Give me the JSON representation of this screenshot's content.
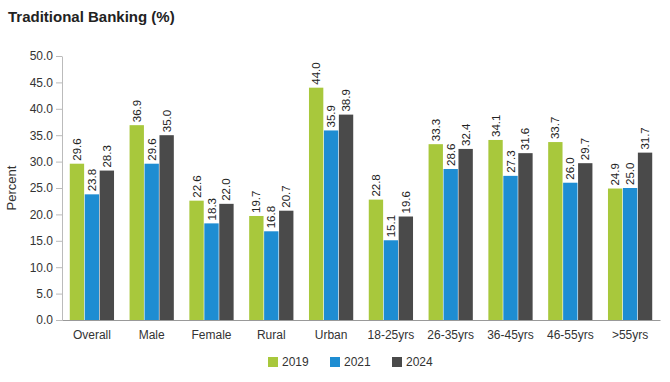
{
  "chart_data": {
    "type": "bar",
    "title": "Traditional Banking (%)",
    "y_label": "Percent",
    "categories": [
      "Overall",
      "Male",
      "Female",
      "Rural",
      "Urban",
      "18-25yrs",
      "26-35yrs",
      "36-45yrs",
      "46-55yrs",
      ">55yrs"
    ],
    "series": [
      {
        "name": "2019",
        "color": "#a8c83c",
        "values": [
          29.6,
          36.9,
          22.6,
          19.7,
          44.0,
          22.8,
          33.3,
          34.1,
          33.7,
          24.9
        ],
        "value_labels": [
          "29.6",
          "36.9",
          "22.6",
          "19.7",
          "44.0",
          "22.8",
          "33.3",
          "34.1",
          "33.7",
          "24.9"
        ]
      },
      {
        "name": "2021",
        "color": "#1e8dd2",
        "values": [
          23.8,
          29.6,
          18.3,
          16.8,
          35.9,
          15.1,
          28.6,
          27.3,
          26.0,
          25.0
        ],
        "value_labels": [
          "23.8",
          "29.6",
          "18.3",
          "16.8",
          "35.9",
          "15.1",
          "28.6",
          "27.3",
          "26.0",
          "25.0"
        ]
      },
      {
        "name": "2024",
        "color": "#4a4a4a",
        "values": [
          28.3,
          35.0,
          22.0,
          20.7,
          38.9,
          19.6,
          32.4,
          31.6,
          29.7,
          31.7
        ],
        "value_labels": [
          "28.3",
          "35.0",
          "22.0",
          "20.7",
          "38.9",
          "19.6",
          "32.4",
          "31.6",
          "29.7",
          "31.7"
        ]
      }
    ],
    "ylim": [
      0,
      50
    ],
    "yticks": [
      {
        "value": 0,
        "label": "0.0"
      },
      {
        "value": 5,
        "label": "5.0"
      },
      {
        "value": 10,
        "label": "10.0"
      },
      {
        "value": 15,
        "label": "15.0"
      },
      {
        "value": 20,
        "label": "20.0"
      },
      {
        "value": 25,
        "label": "25.0"
      },
      {
        "value": 30,
        "label": "30.0"
      },
      {
        "value": 35,
        "label": "35.0"
      },
      {
        "value": 40,
        "label": "40.0"
      },
      {
        "value": 45,
        "label": "45.0"
      },
      {
        "value": 50,
        "label": "50.0"
      }
    ],
    "grid": false,
    "legend": "bottom",
    "data_labels": true
  }
}
